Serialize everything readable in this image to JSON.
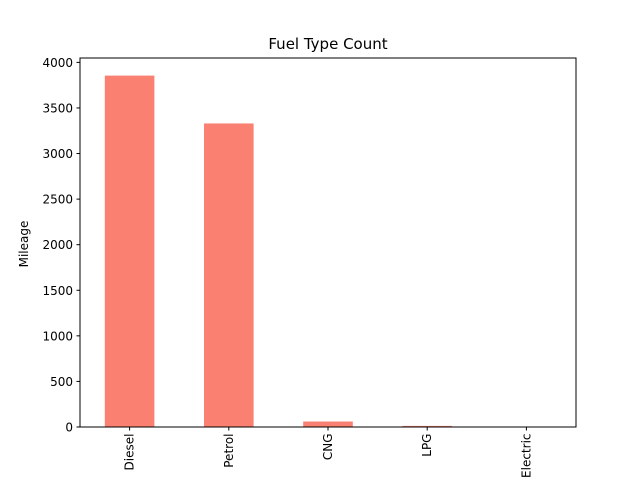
{
  "chart_data": {
    "type": "bar",
    "title": "Fuel Type Count",
    "xlabel": "",
    "ylabel": "Mileage",
    "categories": [
      "Diesel",
      "Petrol",
      "CNG",
      "LPG",
      "Electric"
    ],
    "values": [
      3855,
      3330,
      60,
      12,
      2
    ],
    "ylim": [
      0,
      4048
    ],
    "yticks": [
      0,
      500,
      1000,
      1500,
      2000,
      2500,
      3000,
      3500,
      4000
    ],
    "bar_color": "#fa8072",
    "grid": false,
    "legend": "none"
  }
}
